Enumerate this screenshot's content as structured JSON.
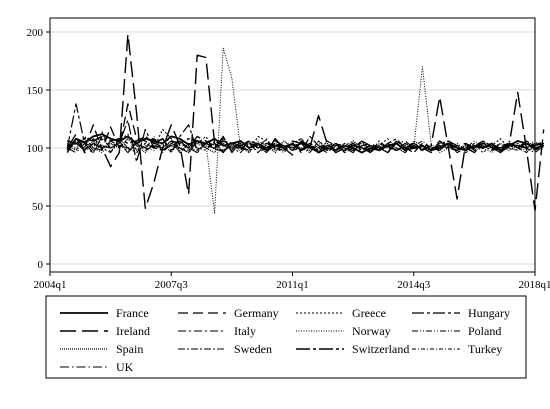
{
  "chart_data": {
    "type": "line",
    "title": "",
    "xlabel": "",
    "ylabel": "",
    "ylim": [
      0,
      200
    ],
    "y_ticks": [
      0,
      50,
      100,
      150,
      200
    ],
    "x_ticks": [
      "2004q1",
      "2007q3",
      "2011q1",
      "2014q3",
      "2018q1"
    ],
    "x_start_quarter": "2004q1",
    "x_end_quarter": "2018q1",
    "grid": "horizontal",
    "legend_position": "bottom",
    "series": [
      {
        "name": "France",
        "x_start": "2004q3",
        "values": [
          98,
          108,
          105,
          110,
          112,
          108,
          106,
          110,
          104,
          108,
          106,
          104,
          110,
          108,
          103,
          106,
          104,
          108,
          102,
          104,
          106,
          100,
          104,
          98,
          102,
          100,
          104,
          98,
          102,
          96,
          100,
          98,
          102,
          100,
          96,
          100,
          98,
          102,
          104,
          98,
          100,
          102,
          98,
          100,
          104,
          100,
          98,
          102,
          100,
          104,
          98,
          102,
          106,
          104,
          100,
          102
        ]
      },
      {
        "name": "Germany",
        "x_start": "2004q3",
        "values": [
          96,
          108,
          100,
          120,
          98,
          118,
          100,
          138,
          108,
          106,
          100,
          108,
          98,
          104,
          100,
          110,
          106,
          102,
          108,
          104,
          98,
          106,
          100,
          104,
          102,
          100,
          106,
          104,
          100,
          102,
          98,
          104,
          100,
          98,
          102,
          104,
          100,
          102,
          98,
          104,
          100,
          102,
          98,
          106,
          100,
          102,
          104,
          100,
          102,
          98,
          104,
          102,
          100,
          104,
          102,
          106
        ]
      },
      {
        "name": "Greece",
        "x_start": "2004q3",
        "values": [
          104,
          98,
          110,
          100,
          114,
          96,
          106,
          112,
          98,
          104,
          100,
          116,
          108,
          100,
          96,
          104,
          110,
          98,
          106,
          100,
          104,
          96,
          110,
          106,
          100,
          98,
          104,
          108,
          100,
          96,
          106,
          102,
          98,
          104,
          100,
          96,
          102,
          108,
          100,
          98,
          104,
          100,
          96,
          106,
          102,
          98,
          100,
          104,
          96,
          102,
          108,
          100,
          98,
          104,
          100,
          102
        ]
      },
      {
        "name": "Hungary",
        "x_start": "2004q3",
        "values": [
          100,
          138,
          104,
          96,
          110,
          100,
          104,
          124,
          88,
          116,
          100,
          108,
          96,
          110,
          120,
          98,
          104,
          100,
          110,
          96,
          106,
          100,
          104,
          98,
          108,
          100,
          104,
          96,
          110,
          102,
          98,
          104,
          100,
          96,
          106,
          102,
          98,
          104,
          108,
          100,
          96,
          104,
          100,
          98,
          106,
          102,
          100,
          96,
          104,
          100,
          98,
          104,
          100,
          106,
          102,
          104
        ]
      },
      {
        "name": "Ireland",
        "x_start": "2004q3",
        "values": [
          100,
          112,
          96,
          104,
          100,
          84,
          96,
          198,
          130,
          48,
          70,
          100,
          120,
          102,
          60,
          180,
          178,
          104,
          96,
          106,
          100,
          98,
          104,
          96,
          108,
          100,
          94,
          106,
          100,
          128,
          104,
          96,
          100,
          104,
          98,
          102,
          100,
          96,
          106,
          100,
          104,
          98,
          102,
          144,
          100,
          56,
          104,
          98,
          100,
          104,
          96,
          102,
          148,
          100,
          46,
          116
        ]
      },
      {
        "name": "Italy",
        "x_start": "2004q3",
        "values": [
          106,
          104,
          98,
          108,
          102,
          100,
          106,
          96,
          104,
          100,
          108,
          98,
          104,
          100,
          96,
          106,
          102,
          100,
          104,
          98,
          106,
          100,
          102,
          96,
          104,
          100,
          98,
          106,
          102,
          100,
          104,
          98,
          102,
          100,
          106,
          96,
          104,
          100,
          98,
          102,
          104,
          100,
          96,
          106,
          102,
          100,
          98,
          104,
          100,
          102,
          96,
          104,
          100,
          106,
          98,
          104
        ]
      },
      {
        "name": "Norway",
        "x_start": "2004q3",
        "values": [
          102,
          98,
          106,
          100,
          96,
          104,
          100,
          108,
          98,
          102,
          100,
          104,
          96,
          106,
          100,
          98,
          104,
          44,
          186,
          160,
          100,
          96,
          104,
          100,
          98,
          106,
          102,
          100,
          96,
          104,
          100,
          98,
          102,
          106,
          100,
          96,
          104,
          100,
          98,
          102,
          100,
          170,
          104,
          96,
          100,
          104,
          98,
          102,
          100,
          96,
          104,
          100,
          98,
          102,
          106,
          100
        ]
      },
      {
        "name": "Poland",
        "x_start": "2004q3",
        "values": [
          104,
          100,
          106,
          98,
          102,
          100,
          104,
          96,
          106,
          100,
          98,
          104,
          102,
          100,
          96,
          106,
          100,
          104,
          98,
          102,
          100,
          106,
          96,
          104,
          100,
          98,
          102,
          104,
          100,
          96,
          106,
          102,
          100,
          98,
          104,
          100,
          102,
          96,
          106,
          100,
          104,
          98,
          100,
          102,
          104,
          96,
          100,
          106,
          102,
          98,
          100,
          104,
          100,
          96,
          102,
          104
        ]
      },
      {
        "name": "Spain",
        "x_start": "2004q3",
        "values": [
          102,
          104,
          98,
          106,
          100,
          104,
          100,
          108,
          102,
          96,
          104,
          100,
          106,
          98,
          102,
          104,
          100,
          96,
          106,
          102,
          98,
          104,
          100,
          102,
          96,
          106,
          100,
          104,
          98,
          102,
          100,
          104,
          96,
          106,
          100,
          102,
          98,
          104,
          100,
          96,
          106,
          102,
          100,
          98,
          104,
          100,
          102,
          96,
          106,
          100,
          104,
          98,
          102,
          100,
          104,
          102
        ]
      },
      {
        "name": "Sweden",
        "x_start": "2004q3",
        "values": [
          100,
          106,
          98,
          104,
          100,
          96,
          108,
          100,
          104,
          98,
          102,
          100,
          106,
          96,
          104,
          100,
          98,
          106,
          102,
          100,
          96,
          104,
          100,
          108,
          98,
          102,
          100,
          104,
          96,
          106,
          100,
          98,
          104,
          102,
          100,
          96,
          106,
          100,
          104,
          98,
          102,
          100,
          96,
          104,
          106,
          100,
          98,
          102,
          104,
          100,
          96,
          106,
          100,
          104,
          98,
          102
        ]
      },
      {
        "name": "Switzerland",
        "x_start": "2004q3",
        "values": [
          106,
          104,
          108,
          106,
          110,
          106,
          108,
          104,
          106,
          110,
          104,
          108,
          106,
          104,
          108,
          106,
          104,
          102,
          106,
          104,
          102,
          106,
          104,
          100,
          104,
          102,
          100,
          104,
          102,
          98,
          102,
          100,
          98,
          102,
          100,
          98,
          100,
          102,
          98,
          100,
          102,
          100,
          98,
          102,
          100,
          98,
          102,
          100,
          104,
          102,
          100,
          104,
          102,
          100,
          104,
          102
        ]
      },
      {
        "name": "Turkey",
        "x_start": "2004q3",
        "values": [
          98,
          104,
          100,
          96,
          108,
          100,
          104,
          98,
          102,
          100,
          110,
          96,
          104,
          100,
          98,
          106,
          102,
          100,
          96,
          104,
          100,
          98,
          106,
          102,
          100,
          96,
          104,
          108,
          100,
          98,
          102,
          104,
          96,
          100,
          106,
          102,
          98,
          104,
          100,
          96,
          102,
          106,
          100,
          98,
          104,
          102,
          96,
          100,
          106,
          102,
          98,
          100,
          104,
          96,
          102,
          104
        ]
      },
      {
        "name": "UK",
        "x_start": "2004q3",
        "values": [
          100,
          96,
          104,
          100,
          98,
          106,
          102,
          100,
          96,
          104,
          100,
          98,
          102,
          106,
          100,
          96,
          104,
          100,
          98,
          102,
          100,
          104,
          96,
          100,
          106,
          102,
          98,
          100,
          104,
          100,
          96,
          102,
          104,
          100,
          98,
          102,
          100,
          96,
          104,
          106,
          100,
          98,
          102,
          100,
          104,
          96,
          100,
          102,
          106,
          100,
          98,
          102,
          104,
          100,
          96,
          102
        ]
      }
    ]
  }
}
